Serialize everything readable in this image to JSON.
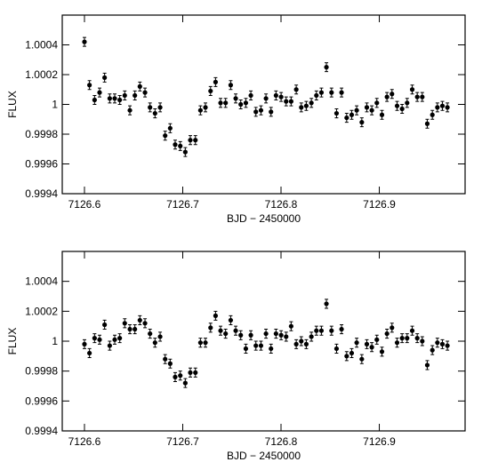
{
  "chart_data": [
    {
      "type": "scatter",
      "xlabel": "BJD − 2450000",
      "ylabel": "FLUX",
      "x": [
        7126.6,
        7126.6051,
        7126.6103,
        7126.6154,
        7126.6205,
        7126.6257,
        7126.6308,
        7126.6359,
        7126.641,
        7126.6462,
        7126.6513,
        7126.6564,
        7126.6616,
        7126.6667,
        7126.6718,
        7126.677,
        7126.6821,
        7126.6872,
        7126.6923,
        7126.6975,
        7126.7026,
        7126.7077,
        7126.7129,
        7126.718,
        7126.7231,
        7126.7283,
        7126.7334,
        7126.7385,
        7126.7436,
        7126.7488,
        7126.7539,
        7126.759,
        7126.7642,
        7126.7693,
        7126.7744,
        7126.7796,
        7126.7847,
        7126.7898,
        7126.7949,
        7126.8001,
        7126.8052,
        7126.8103,
        7126.8155,
        7126.8206,
        7126.8257,
        7126.8309,
        7126.836,
        7126.8411,
        7126.8462,
        7126.8514,
        7126.8565,
        7126.8616,
        7126.8668,
        7126.8719,
        7126.877,
        7126.8822,
        7126.8873,
        7126.8924,
        7126.8975,
        7126.9027,
        7126.9078,
        7126.9129,
        7126.9181,
        7126.9232,
        7126.9283,
        7126.9335,
        7126.9386,
        7126.9437,
        7126.9488,
        7126.954,
        7126.9591,
        7126.9642,
        7126.9693
      ],
      "series": [
        {
          "color": "#000000",
          "values": [
            1.00042,
            1.00013,
            1.00003,
            1.00008,
            1.00018,
            1.00004,
            1.00004,
            1.00003,
            1.00006,
            0.99996,
            1.00006,
            1.00012,
            1.00008,
            0.99998,
            0.99994,
            0.99998,
            0.99979,
            0.99984,
            0.99973,
            0.99972,
            0.99968,
            0.99976,
            0.99976,
            0.99996,
            0.99998,
            1.00009,
            1.00015,
            1.00001,
            1.00001,
            1.00013,
            1.00004,
            1.0,
            1.00001,
            1.00006,
            0.99995,
            0.99996,
            1.00004,
            0.99995,
            1.00006,
            1.00005,
            1.00002,
            1.00002,
            1.0001,
            0.99998,
            0.99999,
            1.00001,
            1.00006,
            1.00008,
            1.00025,
            1.00008,
            0.99994,
            1.00008,
            0.99991,
            0.99993,
            0.99996,
            0.99988,
            0.99998,
            0.99996,
            1.00001,
            0.99993,
            1.00005,
            1.00007,
            0.99999,
            0.99997,
            1.00001,
            1.0001,
            1.00005,
            1.00005,
            0.99987,
            0.99993,
            0.99998,
            0.99999,
            0.99998
          ]
        }
      ],
      "error": 3e-05,
      "xlim": [
        7126.5774,
        7126.9873
      ],
      "xticks": [
        7126.6,
        7126.7,
        7126.8,
        7126.9
      ],
      "ylim": [
        0.9994,
        1.0006
      ],
      "yticks": [
        0.9994,
        0.9996,
        0.9998,
        1,
        1.0002,
        1.0004
      ]
    },
    {
      "type": "scatter",
      "xlabel": "BJD − 2450000",
      "ylabel": "FLUX",
      "x": [
        7126.6,
        7126.6051,
        7126.6103,
        7126.6154,
        7126.6205,
        7126.6257,
        7126.6308,
        7126.6359,
        7126.641,
        7126.6462,
        7126.6513,
        7126.6564,
        7126.6616,
        7126.6667,
        7126.6718,
        7126.677,
        7126.6821,
        7126.6872,
        7126.6923,
        7126.6975,
        7126.7026,
        7126.7077,
        7126.7129,
        7126.718,
        7126.7231,
        7126.7283,
        7126.7334,
        7126.7385,
        7126.7436,
        7126.7488,
        7126.7539,
        7126.759,
        7126.7642,
        7126.7693,
        7126.7744,
        7126.7796,
        7126.7847,
        7126.7898,
        7126.7949,
        7126.8001,
        7126.8052,
        7126.8103,
        7126.8155,
        7126.8206,
        7126.8257,
        7126.8309,
        7126.836,
        7126.8411,
        7126.8462,
        7126.8514,
        7126.8565,
        7126.8616,
        7126.8668,
        7126.8719,
        7126.877,
        7126.8822,
        7126.8873,
        7126.8924,
        7126.8975,
        7126.9027,
        7126.9078,
        7126.9129,
        7126.9181,
        7126.9232,
        7126.9283,
        7126.9335,
        7126.9386,
        7126.9437,
        7126.9488,
        7126.954,
        7126.9591,
        7126.9642,
        7126.9693
      ],
      "series": [
        {
          "color": "#000000",
          "values": [
            0.99998,
            0.99992,
            1.00002,
            1.00001,
            1.00011,
            0.99997,
            1.00001,
            1.00002,
            1.00012,
            1.00008,
            1.00008,
            1.00014,
            1.00012,
            1.00005,
            0.99999,
            1.00003,
            0.99988,
            0.99985,
            0.99976,
            0.99977,
            0.99972,
            0.99979,
            0.99979,
            0.99999,
            0.99999,
            1.00009,
            1.00017,
            1.00007,
            1.00005,
            1.00014,
            1.00007,
            1.00004,
            0.99995,
            1.00004,
            0.99997,
            0.99997,
            1.00005,
            0.99995,
            1.00005,
            1.00004,
            1.00003,
            1.0001,
            0.99998,
            1.0,
            0.99998,
            1.00003,
            1.00007,
            1.00007,
            1.00025,
            1.00007,
            0.99995,
            1.00008,
            0.9999,
            0.99992,
            0.99999,
            0.99988,
            0.99998,
            0.99996,
            1.00001,
            0.99993,
            1.00005,
            1.00009,
            0.99999,
            1.00002,
            1.00002,
            1.00007,
            1.00002,
            1.0,
            0.99984,
            0.99994,
            0.99999,
            0.99998,
            0.99997
          ]
        }
      ],
      "error": 3e-05,
      "xlim": [
        7126.5774,
        7126.9873
      ],
      "xticks": [
        7126.6,
        7126.7,
        7126.8,
        7126.9
      ],
      "ylim": [
        0.9994,
        1.0006
      ],
      "yticks": [
        0.9994,
        0.9996,
        0.9998,
        1,
        1.0002,
        1.0004
      ]
    }
  ]
}
